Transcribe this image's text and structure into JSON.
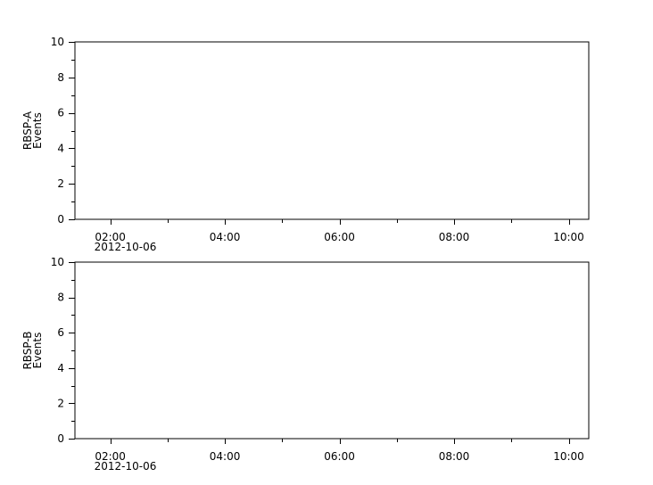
{
  "chart_data": [
    {
      "type": "line",
      "ylabel": [
        "RBSP-A",
        "Events"
      ],
      "ylim": [
        0,
        10
      ],
      "yticks": [
        "0",
        "2",
        "4",
        "6",
        "8",
        "10"
      ],
      "xlim": [
        "2012-10-06 01:23",
        "2012-10-06 10:21"
      ],
      "xticks": [
        "02:00",
        "04:00",
        "06:00",
        "08:00",
        "10:00"
      ],
      "xdate_label": "2012-10-06",
      "series": []
    },
    {
      "type": "line",
      "ylabel": [
        "RBSP-B",
        "Events"
      ],
      "ylim": [
        0,
        10
      ],
      "yticks": [
        "0",
        "2",
        "4",
        "6",
        "8",
        "10"
      ],
      "xlim": [
        "2012-10-06 01:23",
        "2012-10-06 10:21"
      ],
      "xticks": [
        "02:00",
        "04:00",
        "06:00",
        "08:00",
        "10:00"
      ],
      "xdate_label": "2012-10-06",
      "series": []
    }
  ]
}
